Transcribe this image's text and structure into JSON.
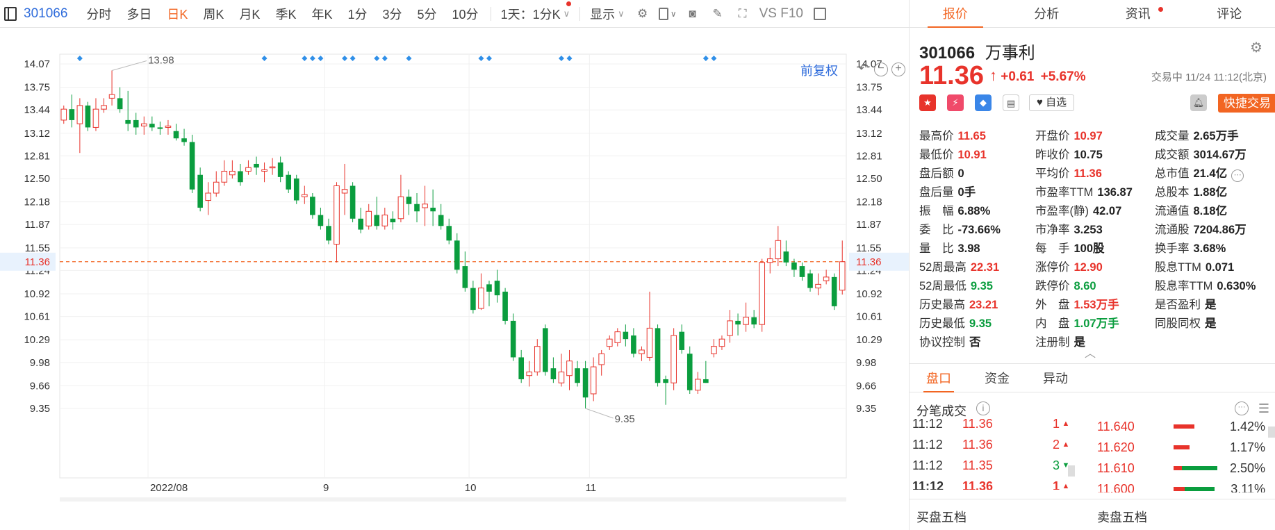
{
  "toolbar": {
    "code": "301066",
    "tabs": [
      "分时",
      "多日",
      "日K",
      "周K",
      "月K",
      "季K",
      "年K",
      "1分",
      "3分",
      "5分",
      "10分"
    ],
    "active_tab": "日K",
    "period_dropdown": "1天：1分K",
    "display_dropdown": "显示",
    "f10_label": "VS F10"
  },
  "chart": {
    "fuquan_label": "前复权",
    "current_price_label": "11.36",
    "high_marker": "13.98",
    "low_marker": "9.35",
    "colors": {
      "up": "#e8332b",
      "down": "#0a9d3e",
      "price_line": "#f26522",
      "marker": "#2f8fe8"
    }
  },
  "chart_data": {
    "type": "candlestick",
    "y_ticks": [
      "14.07",
      "13.75",
      "13.44",
      "13.12",
      "12.81",
      "12.50",
      "12.18",
      "11.87",
      "11.55",
      "11.24",
      "10.92",
      "10.61",
      "10.29",
      "9.98",
      "9.66",
      "9.35"
    ],
    "ylim": [
      9.2,
      14.2
    ],
    "x_labels": [
      "2022/08",
      "9",
      "10",
      "11"
    ],
    "x_label_index": [
      11,
      33,
      51,
      66
    ],
    "current_price": 11.36,
    "event_marker_index": [
      2,
      25,
      30,
      31,
      32,
      35,
      36,
      39,
      40,
      43,
      52,
      53,
      62,
      63,
      80,
      81
    ],
    "candles": [
      [
        13.3,
        13.45,
        13.5,
        13.25
      ],
      [
        13.45,
        13.3,
        13.65,
        13.2
      ],
      [
        13.25,
        13.5,
        13.6,
        12.85
      ],
      [
        13.5,
        13.2,
        13.55,
        13.15
      ],
      [
        13.2,
        13.45,
        13.6,
        13.15
      ],
      [
        13.45,
        13.5,
        13.6,
        13.4
      ],
      [
        13.6,
        13.65,
        13.98,
        13.5
      ],
      [
        13.6,
        13.45,
        13.75,
        13.4
      ],
      [
        13.3,
        13.25,
        13.7,
        13.15
      ],
      [
        13.3,
        13.2,
        13.4,
        13.1
      ],
      [
        13.22,
        13.25,
        13.35,
        13.1
      ],
      [
        13.25,
        13.2,
        13.35,
        13.15
      ],
      [
        13.2,
        13.18,
        13.28,
        13.1
      ],
      [
        13.2,
        13.22,
        13.3,
        13.1
      ],
      [
        13.15,
        13.05,
        13.25,
        13.02
      ],
      [
        13.05,
        13.0,
        13.18,
        12.95
      ],
      [
        13.0,
        12.35,
        13.1,
        12.3
      ],
      [
        12.55,
        12.1,
        12.65,
        12.05
      ],
      [
        12.2,
        12.3,
        12.45,
        12.0
      ],
      [
        12.3,
        12.45,
        12.6,
        12.25
      ],
      [
        12.45,
        12.6,
        12.75,
        12.4
      ],
      [
        12.55,
        12.6,
        12.75,
        12.5
      ],
      [
        12.6,
        12.45,
        12.7,
        12.4
      ],
      [
        12.6,
        12.65,
        12.75,
        12.55
      ],
      [
        12.7,
        12.65,
        12.8,
        12.55
      ],
      [
        12.6,
        12.62,
        12.72,
        12.45
      ],
      [
        12.65,
        12.66,
        12.78,
        12.55
      ],
      [
        12.72,
        12.52,
        12.8,
        12.45
      ],
      [
        12.55,
        12.35,
        12.6,
        12.3
      ],
      [
        12.5,
        12.2,
        12.55,
        12.15
      ],
      [
        12.25,
        12.28,
        12.4,
        12.15
      ],
      [
        12.25,
        12.0,
        12.3,
        11.95
      ],
      [
        12.0,
        11.85,
        12.1,
        11.8
      ],
      [
        11.85,
        11.65,
        11.95,
        11.6
      ],
      [
        11.6,
        12.4,
        12.45,
        11.35
      ],
      [
        12.3,
        12.35,
        12.7,
        12.0
      ],
      [
        12.4,
        11.95,
        12.45,
        11.9
      ],
      [
        11.95,
        11.8,
        12.1,
        11.75
      ],
      [
        11.85,
        12.05,
        12.15,
        11.8
      ],
      [
        12.0,
        11.85,
        12.25,
        11.8
      ],
      [
        11.85,
        12.0,
        12.1,
        11.8
      ],
      [
        11.95,
        11.9,
        12.05,
        11.8
      ],
      [
        11.95,
        12.25,
        12.55,
        11.9
      ],
      [
        12.25,
        12.15,
        12.35,
        12.0
      ],
      [
        12.15,
        12.05,
        12.3,
        11.9
      ],
      [
        12.1,
        12.15,
        12.4,
        11.85
      ],
      [
        12.1,
        12.05,
        12.35,
        11.85
      ],
      [
        12.0,
        11.85,
        12.15,
        11.8
      ],
      [
        11.85,
        11.65,
        11.95,
        11.6
      ],
      [
        11.65,
        11.25,
        11.75,
        11.2
      ],
      [
        11.3,
        11.0,
        11.5,
        10.95
      ],
      [
        11.0,
        10.7,
        11.1,
        10.65
      ],
      [
        10.72,
        11.0,
        11.2,
        10.7
      ],
      [
        11.05,
        10.95,
        11.1,
        10.75
      ],
      [
        11.1,
        10.9,
        11.25,
        10.8
      ],
      [
        10.95,
        10.55,
        11.0,
        10.5
      ],
      [
        10.55,
        10.05,
        10.65,
        10.0
      ],
      [
        10.05,
        9.75,
        10.15,
        9.7
      ],
      [
        9.8,
        9.85,
        10.0,
        9.65
      ],
      [
        9.85,
        10.2,
        10.3,
        9.8
      ],
      [
        10.45,
        9.85,
        10.5,
        9.8
      ],
      [
        9.9,
        9.75,
        10.05,
        9.7
      ],
      [
        9.7,
        9.85,
        10.1,
        9.65
      ],
      [
        9.8,
        10.0,
        10.15,
        9.6
      ],
      [
        9.9,
        9.7,
        10.0,
        9.65
      ],
      [
        9.9,
        9.5,
        10.0,
        9.35
      ],
      [
        9.55,
        9.92,
        10.05,
        9.45
      ],
      [
        9.95,
        10.1,
        10.15,
        9.8
      ],
      [
        10.2,
        10.3,
        10.35,
        10.15
      ],
      [
        10.25,
        10.4,
        10.45,
        10.2
      ],
      [
        10.4,
        10.3,
        10.5,
        10.2
      ],
      [
        10.35,
        10.1,
        10.45,
        10.05
      ],
      [
        10.1,
        10.15,
        10.2,
        10.0
      ],
      [
        10.05,
        10.45,
        10.95,
        10.0
      ],
      [
        10.45,
        9.7,
        10.5,
        9.65
      ],
      [
        9.75,
        9.7,
        9.8,
        9.4
      ],
      [
        9.7,
        10.35,
        10.45,
        9.6
      ],
      [
        10.4,
        10.15,
        10.5,
        10.1
      ],
      [
        10.1,
        9.6,
        10.2,
        9.55
      ],
      [
        9.6,
        9.75,
        9.85,
        9.55
      ],
      [
        9.75,
        9.7,
        10.0,
        9.7
      ],
      [
        10.1,
        10.2,
        10.3,
        10.05
      ],
      [
        10.2,
        10.3,
        10.35,
        10.15
      ],
      [
        10.35,
        10.55,
        10.7,
        10.25
      ],
      [
        10.55,
        10.5,
        10.65,
        10.35
      ],
      [
        10.5,
        10.6,
        10.8,
        10.4
      ],
      [
        10.6,
        10.5,
        10.7,
        10.45
      ],
      [
        10.5,
        11.35,
        11.4,
        10.4
      ],
      [
        11.35,
        11.4,
        11.55,
        11.2
      ],
      [
        11.4,
        11.65,
        11.85,
        11.3
      ],
      [
        11.5,
        11.35,
        11.65,
        11.3
      ],
      [
        11.35,
        11.25,
        11.4,
        11.15
      ],
      [
        11.3,
        11.15,
        11.35,
        11.1
      ],
      [
        11.2,
        11.0,
        11.25,
        10.95
      ],
      [
        11.0,
        11.05,
        11.2,
        10.9
      ],
      [
        11.1,
        11.15,
        11.25,
        11.05
      ],
      [
        11.15,
        10.75,
        11.2,
        10.7
      ],
      [
        10.97,
        11.36,
        11.65,
        10.91
      ]
    ]
  },
  "right_tabs": [
    "报价",
    "分析",
    "资讯",
    "评论"
  ],
  "stock": {
    "code": "301066",
    "name": "万事利",
    "price": "11.36",
    "change": "+0.61",
    "change_pct": "+5.67%",
    "status": "交易中 11/24 11:12(北京)",
    "watch_label": "自选",
    "quick_trade": "快捷交易"
  },
  "quote_rows": [
    [
      [
        "最高价",
        "11.65",
        "up"
      ],
      [
        "开盘价",
        "10.97",
        "up"
      ],
      [
        "成交量",
        "2.65万手",
        "bk"
      ]
    ],
    [
      [
        "最低价",
        "10.91",
        "up"
      ],
      [
        "昨收价",
        "10.75",
        "bk"
      ],
      [
        "成交额",
        "3014.67万",
        "bk"
      ]
    ],
    [
      [
        "盘后额",
        "0",
        "bk"
      ],
      [
        "平均价",
        "11.36",
        "up"
      ],
      [
        "总市值",
        "21.4亿",
        "bk"
      ]
    ],
    [
      [
        "盘后量",
        "0手",
        "bk"
      ],
      [
        "市盈率TTM",
        "136.87",
        "bk"
      ],
      [
        "总股本",
        "1.88亿",
        "bk"
      ]
    ],
    [
      [
        "振　幅",
        "6.88%",
        "bk"
      ],
      [
        "市盈率(静)",
        "42.07",
        "bk"
      ],
      [
        "流通值",
        "8.18亿",
        "bk"
      ]
    ],
    [
      [
        "委　比",
        "-73.66%",
        "bk"
      ],
      [
        "市净率",
        "3.253",
        "bk"
      ],
      [
        "流通股",
        "7204.86万",
        "bk"
      ]
    ],
    [
      [
        "量　比",
        "3.98",
        "bk"
      ],
      [
        "每　手",
        "100股",
        "bk"
      ],
      [
        "换手率",
        "3.68%",
        "bk"
      ]
    ],
    [
      [
        "52周最高",
        "22.31",
        "up"
      ],
      [
        "涨停价",
        "12.90",
        "up"
      ],
      [
        "股息TTM",
        "0.071",
        "bk"
      ]
    ],
    [
      [
        "52周最低",
        "9.35",
        "dn"
      ],
      [
        "跌停价",
        "8.60",
        "dn"
      ],
      [
        "股息率TTM",
        "0.630%",
        "bk"
      ]
    ],
    [
      [
        "历史最高",
        "23.21",
        "up"
      ],
      [
        "外　盘",
        "1.53万手",
        "up"
      ],
      [
        "是否盈利",
        "是",
        "bk"
      ]
    ],
    [
      [
        "历史最低",
        "9.35",
        "dn"
      ],
      [
        "内　盘",
        "1.07万手",
        "dn"
      ],
      [
        "同股同权",
        "是",
        "bk"
      ]
    ],
    [
      [
        "协议控制",
        "否",
        "bk"
      ],
      [
        "注册制",
        "是",
        "bk"
      ],
      [
        "",
        "",
        " bk"
      ]
    ]
  ],
  "sub_tabs": [
    "盘口",
    "资金",
    "异动"
  ],
  "fenbi": {
    "title": "分笔成交",
    "ticks": [
      [
        "11:12",
        "11.36",
        "1",
        "up"
      ],
      [
        "11:12",
        "11.36",
        "2",
        "up"
      ],
      [
        "11:12",
        "11.35",
        "3",
        "dn"
      ],
      [
        "11:12",
        "11.36",
        "1",
        "up"
      ]
    ],
    "depth": [
      [
        "11.640",
        "1.42%"
      ],
      [
        "11.620",
        "1.17%"
      ],
      [
        "11.610",
        "2.50%"
      ],
      [
        "11.600",
        "3.11%"
      ]
    ]
  },
  "footer": {
    "buy": "买盘五档",
    "sell": "卖盘五档"
  }
}
